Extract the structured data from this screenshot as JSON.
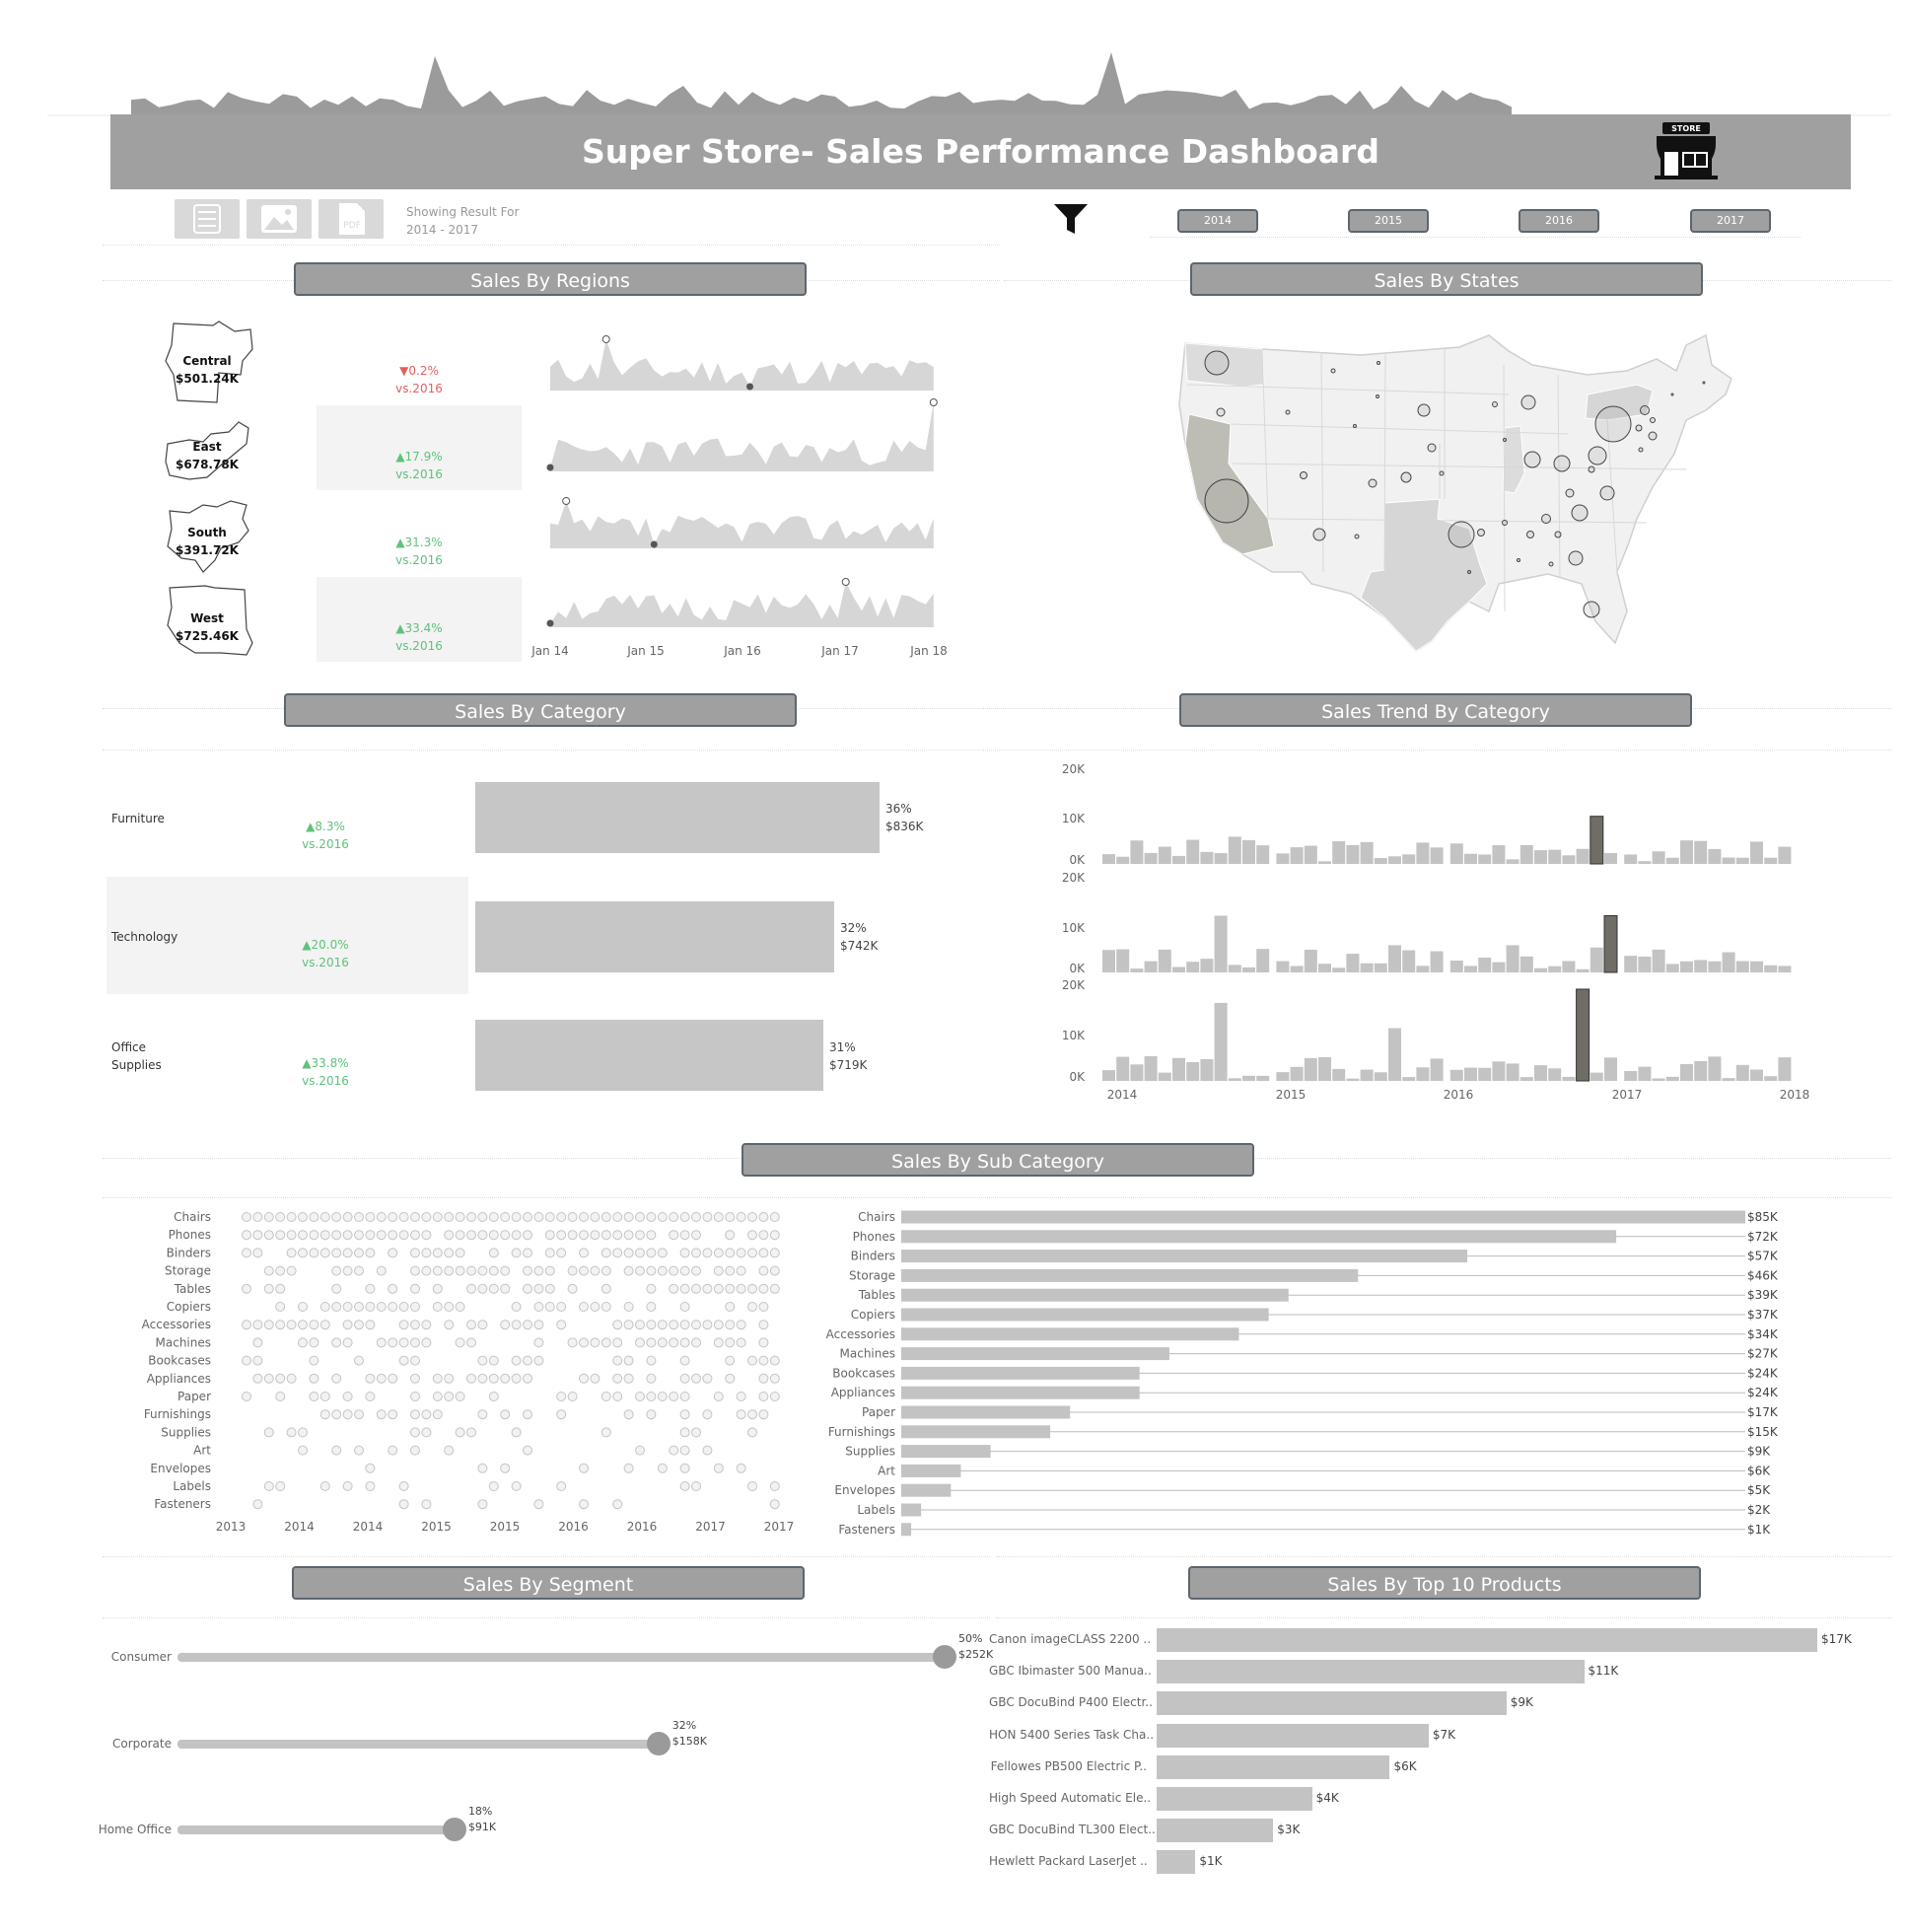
{
  "header": {
    "title": "Super Store- Sales Performance Dashboard",
    "store_icon_text": "STORE"
  },
  "toolbar": {
    "showing_label": "Showing Result For",
    "showing_range": "2014 - 2017",
    "export_icons": [
      "list-export-icon",
      "image-export-icon",
      "pdf-export-icon"
    ],
    "pdf_text": "PDF",
    "years": [
      "2014",
      "2015",
      "2016",
      "2017"
    ]
  },
  "sections": {
    "regions": "Sales By Regions",
    "states": "Sales By States",
    "category": "Sales By Category",
    "trend": "Sales Trend  By Category",
    "subcategory": "Sales By Sub Category",
    "segment": "Sales By Segment",
    "top10": "Sales By Top 10 Products"
  },
  "regions": [
    {
      "name": "Central",
      "sales": "$501.24K",
      "delta": "▼0.2%",
      "vs": "vs.2016",
      "direction": "down"
    },
    {
      "name": "East",
      "sales": "$678.78K",
      "delta": "▲17.9%",
      "vs": "vs.2016",
      "direction": "up"
    },
    {
      "name": "South",
      "sales": "$391.72K",
      "delta": "▲31.3%",
      "vs": "vs.2016",
      "direction": "up"
    },
    {
      "name": "West",
      "sales": "$725.46K",
      "delta": "▲33.4%",
      "vs": "vs.2016",
      "direction": "up"
    }
  ],
  "region_axis": [
    "Jan 14",
    "Jan 15",
    "Jan 16",
    "Jan 17",
    "Jan 18"
  ],
  "categories": [
    {
      "name": "Furniture",
      "delta": "▲8.3%",
      "vs": "vs.2016",
      "pct": "36%",
      "value": "$836K",
      "share": 0.36
    },
    {
      "name": "Technology",
      "delta": "▲20.0%",
      "vs": "vs.2016",
      "pct": "32%",
      "value": "$742K",
      "share": 0.32
    },
    {
      "name": "Office Supplies",
      "delta": "▲33.8%",
      "vs": "vs.2016",
      "pct": "31%",
      "value": "$719K",
      "share": 0.31
    }
  ],
  "trend_axis": {
    "y_ticks": [
      "20K",
      "10K",
      "0K"
    ],
    "x_ticks": [
      "2014",
      "2015",
      "2016",
      "2017",
      "2018"
    ]
  },
  "subcategory_dot_axis": [
    "2013",
    "2014",
    "2014",
    "2015",
    "2015",
    "2016",
    "2016",
    "2017",
    "2017"
  ],
  "chart_data": [
    {
      "type": "bar",
      "title": "Sales By Sub Category",
      "categories": [
        "Chairs",
        "Phones",
        "Binders",
        "Storage",
        "Tables",
        "Copiers",
        "Accessories",
        "Machines",
        "Bookcases",
        "Appliances",
        "Paper",
        "Furnishings",
        "Supplies",
        "Art",
        "Envelopes",
        "Labels",
        "Fasteners"
      ],
      "values": [
        85,
        72,
        57,
        46,
        39,
        37,
        34,
        27,
        24,
        24,
        17,
        15,
        9,
        6,
        5,
        2,
        1
      ],
      "labels": [
        "$85K",
        "$72K",
        "$57K",
        "$46K",
        "$39K",
        "$37K",
        "$34K",
        "$27K",
        "$24K",
        "$24K",
        "$17K",
        "$15K",
        "$9K",
        "$6K",
        "$5K",
        "$2K",
        "$1K"
      ],
      "orientation": "horizontal",
      "unit": "K USD"
    },
    {
      "type": "bar",
      "title": "Sales By Top 10 Products",
      "categories": [
        "Canon imageCLASS 2200 ..",
        "GBC Ibimaster 500 Manua..",
        "GBC DocuBind P400 Electr..",
        "HON 5400 Series Task Cha..",
        "Fellowes PB500 Electric P..",
        "High Speed Automatic Ele..",
        "GBC DocuBind TL300 Elect..",
        "Hewlett Packard LaserJet .."
      ],
      "values": [
        17,
        11,
        9,
        7,
        6,
        4,
        3,
        1
      ],
      "labels": [
        "$17K",
        "$11K",
        "$9K",
        "$7K",
        "$6K",
        "$4K",
        "$3K",
        "$1K"
      ],
      "orientation": "horizontal",
      "unit": "K USD"
    },
    {
      "type": "bar",
      "title": "Sales By Segment",
      "categories": [
        "Consumer",
        "Corporate",
        "Home Office"
      ],
      "values": [
        252,
        158,
        91
      ],
      "pct_labels": [
        "50%",
        "32%",
        "18%"
      ],
      "labels": [
        "$252K",
        "$158K",
        "$91K"
      ],
      "orientation": "horizontal",
      "unit": "K USD"
    }
  ],
  "colors": {
    "banner": "#a0a0a0",
    "up": "#5ec27a",
    "down": "#e06060",
    "bar": "#c3c3c3",
    "highlight": "#6f6d66"
  }
}
